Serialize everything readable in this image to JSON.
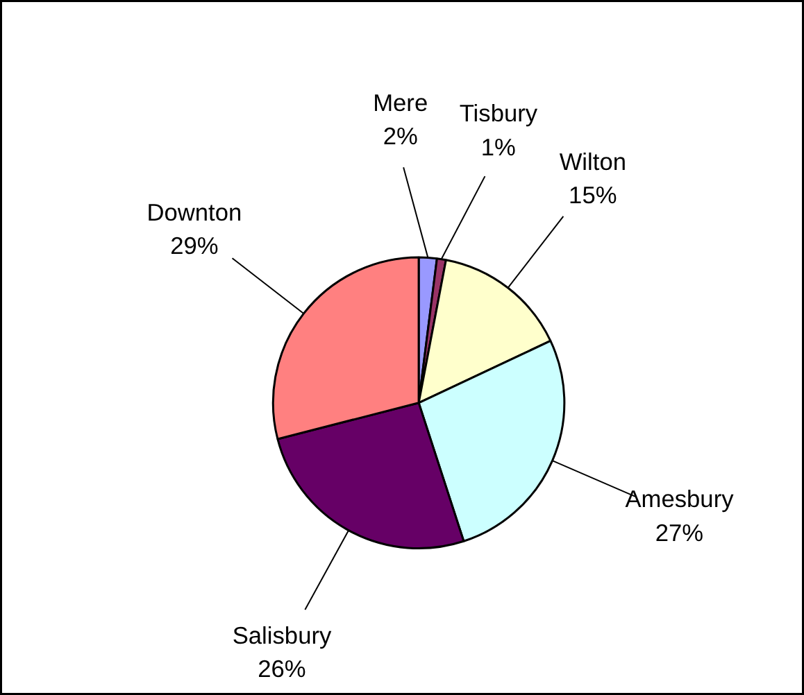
{
  "chart_data": {
    "type": "pie",
    "categories": [
      "Mere",
      "Tisbury",
      "Wilton",
      "Amesbury",
      "Salisbury",
      "Downton"
    ],
    "values": [
      2,
      1,
      15,
      27,
      26,
      29
    ],
    "value_labels": [
      "2%",
      "1%",
      "15%",
      "27%",
      "26%",
      "29%"
    ],
    "colors": [
      "#9999ff",
      "#993366",
      "#ffffcc",
      "#ccffff",
      "#660066",
      "#ff8080"
    ],
    "legend": false
  }
}
